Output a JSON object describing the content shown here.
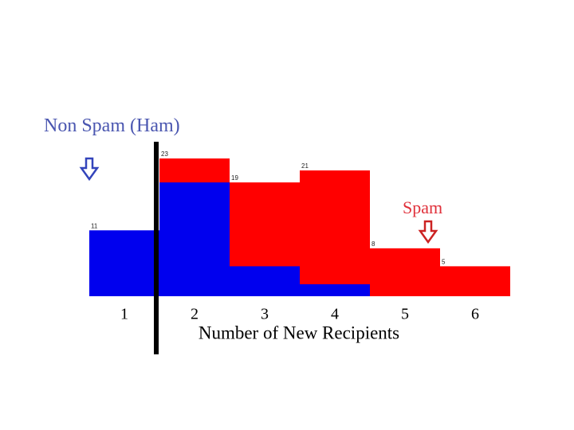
{
  "chart_data": {
    "type": "bar",
    "x_label": "Number of New Recipients",
    "categories": [
      "1",
      "2",
      "3",
      "4",
      "5",
      "6"
    ],
    "ylim": [
      0,
      23
    ],
    "series": [
      {
        "name": "Spam",
        "color": "#ff0000",
        "values": [
          null,
          23,
          19,
          21,
          8,
          5
        ],
        "value_labels": [
          null,
          "23",
          "19",
          "21",
          "8",
          "5"
        ]
      },
      {
        "name": "Non Spam (Ham)",
        "color": "#0000ee",
        "values": [
          11,
          19,
          5,
          2,
          0,
          0
        ],
        "value_labels": [
          "11",
          null,
          null,
          null,
          null,
          null
        ]
      }
    ]
  }
}
